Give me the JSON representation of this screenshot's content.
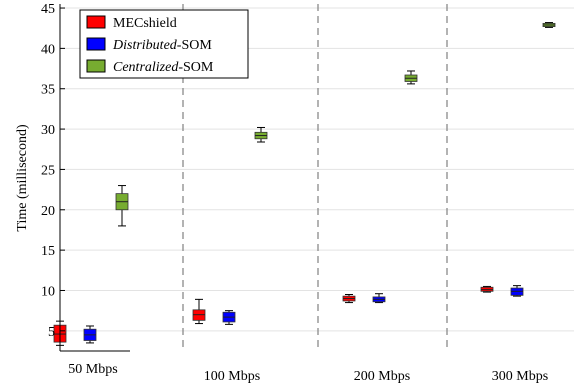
{
  "chart_data": {
    "type": "boxplot",
    "title": "",
    "xlabel": "",
    "ylabel": "Time (millisecond)",
    "ylim": [
      2.5,
      45.5
    ],
    "yticks": [
      5,
      10,
      15,
      20,
      25,
      30,
      35,
      40,
      45
    ],
    "categories": [
      "50 Mbps",
      "100 Mbps",
      "200 Mbps",
      "300 Mbps"
    ],
    "grid": true,
    "legend_position": "top-left",
    "series": [
      {
        "name": "MECshield",
        "name_parts": [
          {
            "text": "MECshield",
            "italic": false
          }
        ],
        "color": "#ff0000",
        "boxes": [
          {
            "whisker_low": 3.2,
            "q1": 3.6,
            "median": 4.6,
            "q3": 5.7,
            "whisker_high": 6.2
          },
          {
            "whisker_low": 5.9,
            "q1": 6.3,
            "median": 7.0,
            "q3": 7.6,
            "whisker_high": 8.9
          },
          {
            "whisker_low": 8.5,
            "q1": 8.7,
            "median": 9.0,
            "q3": 9.3,
            "whisker_high": 9.5
          },
          {
            "whisker_low": 9.8,
            "q1": 9.9,
            "median": 10.1,
            "q3": 10.4,
            "whisker_high": 10.5
          }
        ]
      },
      {
        "name": "Distributed-SOM",
        "name_parts": [
          {
            "text": "Distributed",
            "italic": true
          },
          {
            "text": "-SOM",
            "italic": false
          }
        ],
        "color": "#0000ff",
        "boxes": [
          {
            "whisker_low": 3.5,
            "q1": 3.8,
            "median": 4.5,
            "q3": 5.2,
            "whisker_high": 5.6
          },
          {
            "whisker_low": 5.8,
            "q1": 6.1,
            "median": 6.7,
            "q3": 7.3,
            "whisker_high": 7.5
          },
          {
            "whisker_low": 8.5,
            "q1": 8.6,
            "median": 8.9,
            "q3": 9.2,
            "whisker_high": 9.6
          },
          {
            "whisker_low": 9.3,
            "q1": 9.4,
            "median": 9.9,
            "q3": 10.3,
            "whisker_high": 10.6
          }
        ]
      },
      {
        "name": "Centralized-SOM",
        "name_parts": [
          {
            "text": "Centralized",
            "italic": true
          },
          {
            "text": "-SOM",
            "italic": false
          }
        ],
        "color": "#77ac30",
        "boxes": [
          {
            "whisker_low": 18.0,
            "q1": 20.0,
            "median": 21.0,
            "q3": 22.0,
            "whisker_high": 23.0
          },
          {
            "whisker_low": 28.4,
            "q1": 28.8,
            "median": 29.2,
            "q3": 29.6,
            "whisker_high": 30.2
          },
          {
            "whisker_low": 35.6,
            "q1": 35.9,
            "median": 36.3,
            "q3": 36.7,
            "whisker_high": 37.2
          },
          {
            "whisker_low": 42.6,
            "q1": 42.7,
            "median": 42.9,
            "q3": 43.1,
            "whisker_high": 43.2
          }
        ]
      }
    ]
  }
}
